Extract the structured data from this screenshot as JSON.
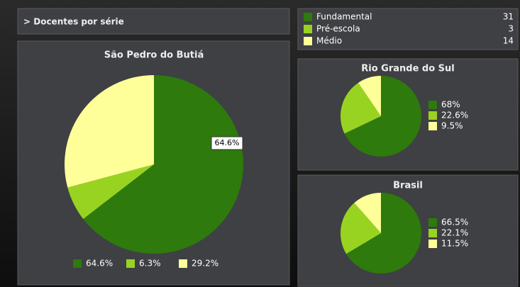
{
  "header": {
    "title": "> Docentes por série"
  },
  "legend": {
    "items": [
      {
        "name": "Fundamental",
        "color": "#2e7a0c",
        "count": "31"
      },
      {
        "name": "Pré-escola",
        "color": "#99d321",
        "count": "3"
      },
      {
        "name": "Médio",
        "color": "#ffff99",
        "count": "14"
      }
    ]
  },
  "chart_data": [
    {
      "type": "pie",
      "title": "São Pedro do Butiá",
      "values": [
        64.6,
        6.3,
        29.2
      ],
      "value_labels": [
        "64.6%",
        "6.3%",
        "29.2%"
      ],
      "colors": [
        "#2e7a0c",
        "#99d321",
        "#ffff99"
      ],
      "annotation": "64.6%"
    },
    {
      "type": "pie",
      "title": "Rio Grande do Sul",
      "values": [
        68,
        22.6,
        9.5
      ],
      "value_labels": [
        "68%",
        "22.6%",
        "9.5%"
      ],
      "colors": [
        "#2e7a0c",
        "#99d321",
        "#ffff99"
      ]
    },
    {
      "type": "pie",
      "title": "Brasil",
      "values": [
        66.5,
        22.1,
        11.5
      ],
      "value_labels": [
        "66.5%",
        "22.1%",
        "11.5%"
      ],
      "colors": [
        "#2e7a0c",
        "#99d321",
        "#ffff99"
      ]
    }
  ]
}
